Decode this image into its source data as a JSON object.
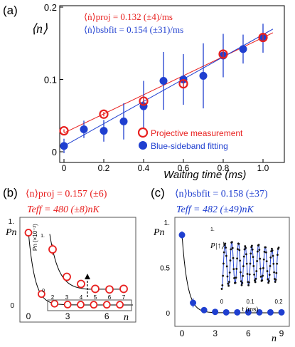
{
  "colors": {
    "red": "#e8201f",
    "blue": "#1f3fd0",
    "axis": "#000000",
    "box": "#555555"
  },
  "chart_data": [
    {
      "panel": "(a)",
      "type": "scatter",
      "xlabel": "Waiting time (ms)",
      "ylabel": "⟨n⟩",
      "xlim": [
        0,
        1.1
      ],
      "ylim": [
        0,
        0.2
      ],
      "xticks": [
        "0",
        "0.2",
        "0.4",
        "0.6",
        "0.8",
        "1.0"
      ],
      "yticks": [
        "0",
        "0.1",
        "0.2"
      ],
      "annotations": [
        "⟨ṅ⟩proj = 0.132 (±4)/ms",
        "⟨ṅ⟩bsbfit = 0.154 (±31)/ms"
      ],
      "legend": [
        "Projective measurement",
        "Blue-sideband fitting"
      ],
      "series": [
        {
          "name": "Projective measurement",
          "marker": "open-circle",
          "color": "red",
          "x": [
            0,
            0.2,
            0.4,
            0.6,
            0.8,
            1.0
          ],
          "y": [
            0.029,
            0.052,
            0.07,
            0.094,
            0.135,
            0.158
          ],
          "err": [
            0.002,
            0.003,
            0.004,
            0.004,
            0.005,
            0.006
          ],
          "fit": {
            "slope": 0.132,
            "intercept": 0.026
          }
        },
        {
          "name": "Blue-sideband fitting",
          "marker": "filled-circle",
          "color": "blue",
          "x": [
            0,
            0.1,
            0.2,
            0.3,
            0.4,
            0.5,
            0.6,
            0.7,
            0.8,
            0.9,
            1.0
          ],
          "y": [
            0.008,
            0.031,
            0.029,
            0.042,
            0.063,
            0.098,
            0.1,
            0.105,
            0.133,
            0.142,
            0.157
          ],
          "err": [
            0.01,
            0.012,
            0.015,
            0.025,
            0.035,
            0.04,
            0.035,
            0.045,
            0.03,
            0.02,
            0.02
          ],
          "fit": {
            "slope": 0.154,
            "intercept": 0.008
          }
        }
      ]
    },
    {
      "panel": "(b)",
      "type": "scatter",
      "xlabel": "n",
      "ylabel": "Pn",
      "xlim": [
        0,
        8
      ],
      "ylim": [
        0,
        1
      ],
      "xticks": [
        "0",
        "3",
        "6"
      ],
      "yticks": [
        "0",
        "1."
      ],
      "annotations": [
        "⟨n⟩proj = 0.157 (±6)",
        "Teff = 480 (±8)nK"
      ],
      "series": [
        {
          "name": "Pn",
          "color": "red",
          "x": [
            0,
            1,
            2,
            3,
            4,
            5,
            6,
            7
          ],
          "y": [
            0.86,
            0.13,
            0.015,
            0.005,
            0.004,
            0.003,
            0.003,
            0.003
          ],
          "err": [
            0.04,
            0.02,
            0.01,
            0.005,
            0.004,
            0.003,
            0.003,
            0.003
          ]
        }
      ],
      "inset": {
        "ylabel": "Pn (×10⁻²)",
        "yticks": [
          "0",
          "1."
        ],
        "xticks": [
          "2",
          "3",
          "4",
          "5",
          "6",
          "7"
        ],
        "x": [
          2,
          3,
          4,
          5,
          6,
          7
        ],
        "y": [
          0.74,
          0.24,
          0.11,
          0.02,
          0.01,
          0.02
        ],
        "err": [
          0.1,
          0.07,
          0.05,
          0.06,
          0.04,
          0.04
        ]
      }
    },
    {
      "panel": "(c)",
      "type": "scatter",
      "xlabel": "n",
      "ylabel": "Pn",
      "xlim": [
        0,
        9
      ],
      "ylim": [
        0,
        1
      ],
      "xticks": [
        "0",
        "3",
        "6",
        "9"
      ],
      "yticks": [
        "0",
        "0.5",
        "1."
      ],
      "annotations": [
        "⟨n⟩bsbfit = 0.158 (±37)",
        "Teff = 482 (±49)nK"
      ],
      "series": [
        {
          "name": "Pn",
          "color": "blue",
          "x": [
            0,
            1,
            2,
            3,
            4,
            5,
            6,
            7,
            8,
            9
          ],
          "y": [
            0.86,
            0.11,
            0.03,
            0.01,
            0.005,
            0.005,
            0.005,
            0.005,
            0.005,
            0.005
          ],
          "err": [
            0.04,
            0.05,
            0.03,
            0.02,
            0.015,
            0.01,
            0.01,
            0.01,
            0.01,
            0.01
          ]
        }
      ],
      "inset": {
        "ylabel": "P|↑⟩",
        "xlabel": "t (ms)",
        "xticks": [
          "0",
          "0.1",
          "0.2"
        ],
        "yticks": [
          "1."
        ],
        "period_ms": 0.0235
      }
    }
  ]
}
